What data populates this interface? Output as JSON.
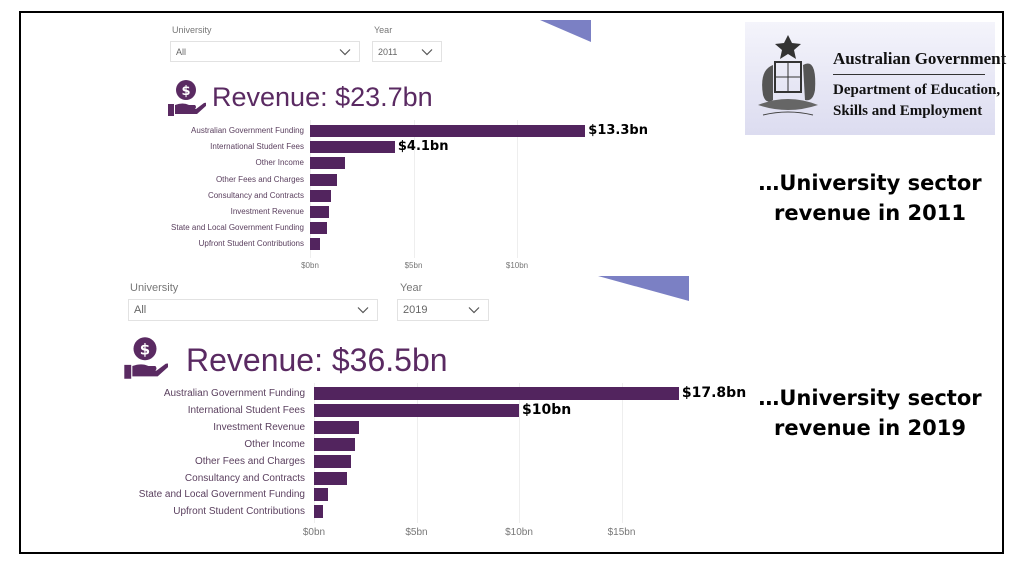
{
  "logo": {
    "line1": "Australian Government",
    "line2": "Department of Education,",
    "line3": "Skills and Employment"
  },
  "captions": {
    "top": "…University sector revenue in 2011",
    "bottom": "…University sector revenue in 2019"
  },
  "colors": {
    "bar": "#52245e",
    "title": "#5a2a62",
    "accent_triangle": "#7b80c4"
  },
  "chart_data": [
    {
      "type": "bar",
      "orientation": "horizontal",
      "filters": {
        "university_label": "University",
        "university_value": "All",
        "year_label": "Year",
        "year_value": "2011"
      },
      "title": "Revenue: $23.7bn",
      "categories": [
        "Australian Government Funding",
        "International Student Fees",
        "Other Income",
        "Other Fees and Charges",
        "Consultancy and Contracts",
        "Investment Revenue",
        "State and Local Government Funding",
        "Upfront Student Contributions"
      ],
      "values": [
        13.3,
        4.1,
        1.7,
        1.3,
        1.0,
        0.9,
        0.8,
        0.5
      ],
      "data_labels": [
        "$13.3bn",
        "$4.1bn",
        "",
        "",
        "",
        "",
        "",
        ""
      ],
      "xticks": [
        "$0bn",
        "$5bn",
        "$10bn"
      ],
      "xtick_values": [
        0,
        5,
        10
      ],
      "xlim": [
        0,
        13.3
      ],
      "unit": "bn AUD",
      "grid": true
    },
    {
      "type": "bar",
      "orientation": "horizontal",
      "filters": {
        "university_label": "University",
        "university_value": "All",
        "year_label": "Year",
        "year_value": "2019"
      },
      "title": "Revenue: $36.5bn",
      "categories": [
        "Australian Government Funding",
        "International Student Fees",
        "Investment Revenue",
        "Other Income",
        "Other Fees and Charges",
        "Consultancy and Contracts",
        "State and Local Government Funding",
        "Upfront Student Contributions"
      ],
      "values": [
        17.8,
        10.0,
        2.2,
        2.0,
        1.8,
        1.6,
        0.7,
        0.45
      ],
      "data_labels": [
        "$17.8bn",
        "$10bn",
        "",
        "",
        "",
        "",
        "",
        ""
      ],
      "xticks": [
        "$0bn",
        "$5bn",
        "$10bn",
        "$15bn"
      ],
      "xtick_values": [
        0,
        5,
        10,
        15
      ],
      "xlim": [
        0,
        17.8
      ],
      "unit": "bn AUD",
      "grid": true
    }
  ]
}
